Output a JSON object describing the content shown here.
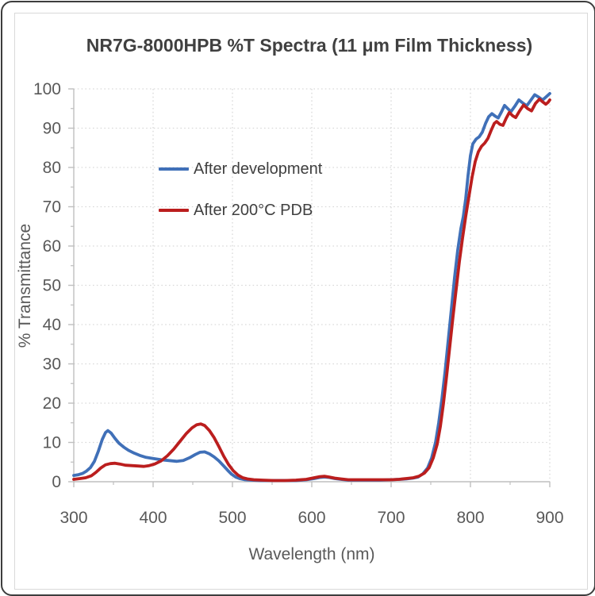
{
  "chart_data": {
    "type": "line",
    "title": "NR7G-8000HPB %T Spectra (11 μm Film Thickness)",
    "xlabel": "Wavelength (nm)",
    "ylabel": "% Transmittance",
    "xlim": [
      300,
      900
    ],
    "ylim": [
      0,
      100
    ],
    "x_major_ticks": [
      300,
      400,
      500,
      600,
      700,
      800,
      900
    ],
    "x_minor_ticks": [
      350,
      450,
      550,
      650,
      750,
      850
    ],
    "y_major_ticks": [
      0,
      10,
      20,
      30,
      40,
      50,
      60,
      70,
      80,
      90,
      100
    ],
    "y_minor_ticks": [
      5,
      15,
      25,
      35,
      45,
      55,
      65,
      75,
      85,
      95
    ],
    "grid": {
      "show": true,
      "style": "dotted",
      "color": "#d9d9d9"
    },
    "axis_color": "#bfbfbf",
    "tick_label_color": "#595959",
    "title_color": "#404040",
    "legend_position": "inside-upper-left",
    "series": [
      {
        "name": "After development",
        "color": "#4070b8",
        "points": [
          [
            300,
            1.6
          ],
          [
            306,
            1.8
          ],
          [
            311,
            2.1
          ],
          [
            316,
            2.7
          ],
          [
            321,
            3.6
          ],
          [
            326,
            5.2
          ],
          [
            331,
            7.8
          ],
          [
            336,
            10.8
          ],
          [
            340,
            12.5
          ],
          [
            343,
            13.0
          ],
          [
            347,
            12.4
          ],
          [
            352,
            11.0
          ],
          [
            357,
            9.8
          ],
          [
            363,
            8.8
          ],
          [
            369,
            8.0
          ],
          [
            376,
            7.3
          ],
          [
            383,
            6.7
          ],
          [
            391,
            6.2
          ],
          [
            400,
            5.9
          ],
          [
            410,
            5.6
          ],
          [
            420,
            5.4
          ],
          [
            430,
            5.2
          ],
          [
            438,
            5.4
          ],
          [
            446,
            6.1
          ],
          [
            453,
            6.9
          ],
          [
            459,
            7.5
          ],
          [
            465,
            7.6
          ],
          [
            471,
            7.1
          ],
          [
            477,
            6.3
          ],
          [
            483,
            5.3
          ],
          [
            489,
            4.0
          ],
          [
            494,
            2.9
          ],
          [
            499,
            1.9
          ],
          [
            504,
            1.2
          ],
          [
            509,
            0.8
          ],
          [
            516,
            0.5
          ],
          [
            524,
            0.4
          ],
          [
            535,
            0.3
          ],
          [
            550,
            0.3
          ],
          [
            565,
            0.3
          ],
          [
            580,
            0.3
          ],
          [
            593,
            0.5
          ],
          [
            603,
            0.8
          ],
          [
            610,
            1.1
          ],
          [
            616,
            1.2
          ],
          [
            622,
            1.1
          ],
          [
            629,
            0.8
          ],
          [
            637,
            0.6
          ],
          [
            646,
            0.4
          ],
          [
            658,
            0.4
          ],
          [
            672,
            0.4
          ],
          [
            686,
            0.4
          ],
          [
            700,
            0.5
          ],
          [
            710,
            0.6
          ],
          [
            719,
            0.7
          ],
          [
            727,
            0.9
          ],
          [
            734,
            1.2
          ],
          [
            740,
            2.0
          ],
          [
            746,
            3.5
          ],
          [
            751,
            6.0
          ],
          [
            756,
            10.0
          ],
          [
            760,
            15.0
          ],
          [
            764,
            21.0
          ],
          [
            768,
            28.0
          ],
          [
            772,
            36.0
          ],
          [
            776,
            44.0
          ],
          [
            780,
            52.0
          ],
          [
            784,
            59.0
          ],
          [
            788,
            64.5
          ],
          [
            791,
            67.5
          ],
          [
            794,
            72.0
          ],
          [
            797,
            78.0
          ],
          [
            800,
            83.0
          ],
          [
            803,
            86.0
          ],
          [
            807,
            87.2
          ],
          [
            811,
            87.8
          ],
          [
            815,
            89.0
          ],
          [
            819,
            91.2
          ],
          [
            823,
            92.9
          ],
          [
            827,
            93.7
          ],
          [
            831,
            93.1
          ],
          [
            835,
            92.6
          ],
          [
            839,
            94.1
          ],
          [
            843,
            95.8
          ],
          [
            847,
            95.0
          ],
          [
            851,
            94.2
          ],
          [
            856,
            95.6
          ],
          [
            861,
            97.2
          ],
          [
            866,
            96.4
          ],
          [
            871,
            95.7
          ],
          [
            876,
            97.1
          ],
          [
            881,
            98.5
          ],
          [
            886,
            97.9
          ],
          [
            891,
            97.2
          ],
          [
            895,
            97.9
          ],
          [
            900,
            98.8
          ]
        ]
      },
      {
        "name": "After 200°C PDB",
        "color": "#bb1e1e",
        "points": [
          [
            300,
            0.6
          ],
          [
            308,
            0.8
          ],
          [
            315,
            1.0
          ],
          [
            322,
            1.5
          ],
          [
            328,
            2.4
          ],
          [
            334,
            3.5
          ],
          [
            340,
            4.3
          ],
          [
            346,
            4.6
          ],
          [
            352,
            4.7
          ],
          [
            358,
            4.5
          ],
          [
            365,
            4.2
          ],
          [
            373,
            4.1
          ],
          [
            381,
            4.0
          ],
          [
            388,
            3.9
          ],
          [
            395,
            4.1
          ],
          [
            402,
            4.5
          ],
          [
            410,
            5.3
          ],
          [
            418,
            6.6
          ],
          [
            426,
            8.3
          ],
          [
            434,
            10.3
          ],
          [
            442,
            12.3
          ],
          [
            449,
            13.7
          ],
          [
            455,
            14.5
          ],
          [
            460,
            14.7
          ],
          [
            465,
            14.3
          ],
          [
            471,
            13.0
          ],
          [
            477,
            11.2
          ],
          [
            483,
            8.9
          ],
          [
            489,
            6.5
          ],
          [
            495,
            4.4
          ],
          [
            501,
            2.8
          ],
          [
            507,
            1.7
          ],
          [
            513,
            1.0
          ],
          [
            519,
            0.7
          ],
          [
            527,
            0.5
          ],
          [
            538,
            0.4
          ],
          [
            552,
            0.3
          ],
          [
            566,
            0.3
          ],
          [
            580,
            0.4
          ],
          [
            593,
            0.6
          ],
          [
            603,
            1.0
          ],
          [
            610,
            1.3
          ],
          [
            616,
            1.4
          ],
          [
            622,
            1.2
          ],
          [
            629,
            0.9
          ],
          [
            637,
            0.7
          ],
          [
            646,
            0.5
          ],
          [
            658,
            0.5
          ],
          [
            672,
            0.5
          ],
          [
            686,
            0.5
          ],
          [
            700,
            0.5
          ],
          [
            710,
            0.6
          ],
          [
            719,
            0.8
          ],
          [
            728,
            1.0
          ],
          [
            735,
            1.4
          ],
          [
            742,
            2.2
          ],
          [
            748,
            3.6
          ],
          [
            753,
            6.0
          ],
          [
            758,
            9.5
          ],
          [
            762,
            14.0
          ],
          [
            766,
            20.0
          ],
          [
            770,
            27.0
          ],
          [
            774,
            34.5
          ],
          [
            778,
            42.0
          ],
          [
            782,
            49.0
          ],
          [
            786,
            56.0
          ],
          [
            790,
            62.0
          ],
          [
            794,
            67.5
          ],
          [
            798,
            72.5
          ],
          [
            802,
            77.5
          ],
          [
            806,
            81.5
          ],
          [
            810,
            84.0
          ],
          [
            814,
            85.4
          ],
          [
            818,
            86.2
          ],
          [
            822,
            87.4
          ],
          [
            826,
            89.4
          ],
          [
            830,
            91.2
          ],
          [
            833,
            91.7
          ],
          [
            837,
            91.0
          ],
          [
            841,
            90.7
          ],
          [
            845,
            92.5
          ],
          [
            849,
            94.0
          ],
          [
            853,
            93.2
          ],
          [
            857,
            92.7
          ],
          [
            862,
            94.4
          ],
          [
            867,
            95.9
          ],
          [
            872,
            95.0
          ],
          [
            877,
            94.4
          ],
          [
            882,
            96.3
          ],
          [
            887,
            97.4
          ],
          [
            891,
            96.7
          ],
          [
            895,
            96.1
          ],
          [
            898,
            96.6
          ],
          [
            900,
            97.2
          ]
        ]
      }
    ]
  }
}
